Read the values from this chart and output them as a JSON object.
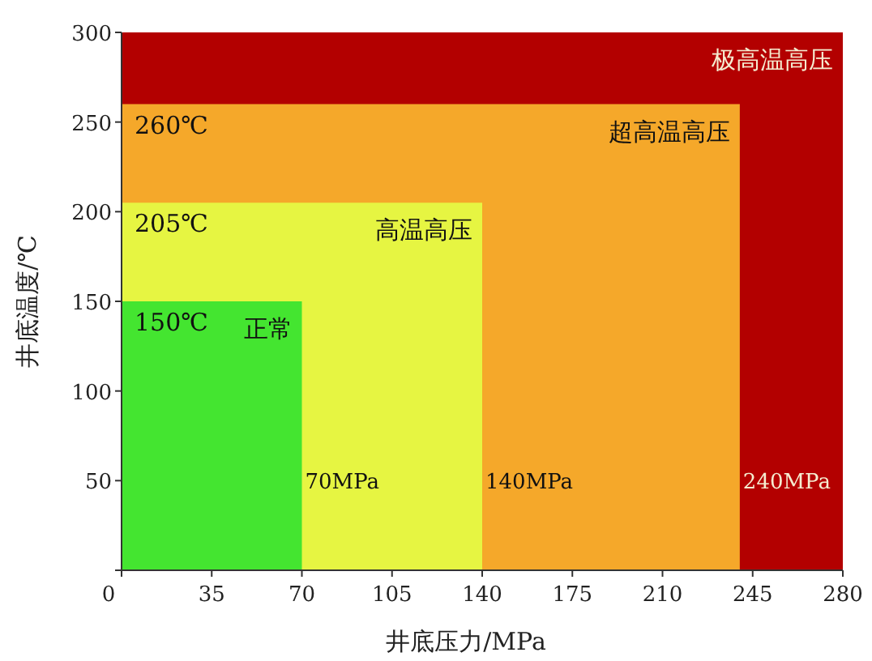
{
  "chart_data": {
    "type": "area",
    "xlabel": "井底压力/MPa",
    "ylabel": "井底温度/℃",
    "xlim": [
      0,
      280
    ],
    "ylim": [
      0,
      300
    ],
    "xticks": [
      0,
      35,
      70,
      105,
      140,
      175,
      210,
      245,
      280
    ],
    "yticks": [
      {
        "value": 0,
        "label": null
      },
      50,
      100,
      150,
      200,
      250,
      300
    ],
    "series": [
      {
        "name": "极高温高压",
        "color": "#b30000",
        "x": [
          0,
          280
        ],
        "values": [
          300,
          300
        ]
      },
      {
        "name": "超高温高压",
        "color": "#f5a82a",
        "x": [
          0,
          240
        ],
        "values": [
          260,
          260
        ]
      },
      {
        "name": "高温高压",
        "color": "#e6f542",
        "x": [
          0,
          140
        ],
        "values": [
          205,
          205
        ]
      },
      {
        "name": "正常",
        "color": "#44e530",
        "x": [
          0,
          70
        ],
        "values": [
          150,
          150
        ]
      }
    ],
    "annotations": [
      {
        "text": "260℃",
        "x": 0,
        "y": 260
      },
      {
        "text": "205℃",
        "x": 0,
        "y": 205
      },
      {
        "text": "150℃",
        "x": 0,
        "y": 150
      },
      {
        "text": "70MPa",
        "x": 70,
        "y": 50
      },
      {
        "text": "140MPa",
        "x": 140,
        "y": 50
      },
      {
        "text": "240MPa",
        "x": 240,
        "y": 50
      }
    ]
  }
}
